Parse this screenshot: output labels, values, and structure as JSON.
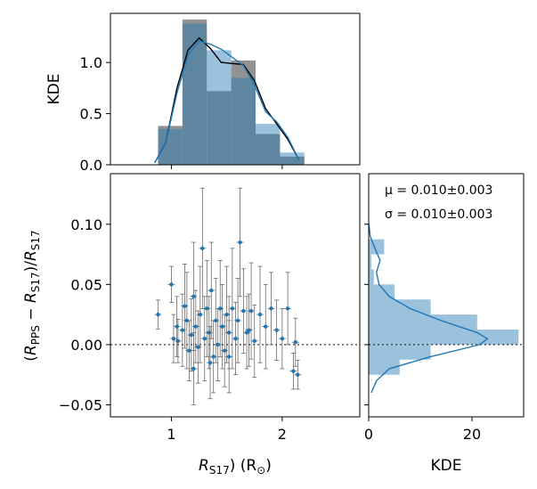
{
  "chart_data": [
    {
      "panel": "top-marginal",
      "type": "histogram+kde",
      "ylabel": "KDE",
      "xlim": [
        0.45,
        2.7
      ],
      "ylim": [
        0,
        1.48
      ],
      "yticks": [
        0.0,
        0.5,
        1.0
      ],
      "ytick_labels": [
        "0.0",
        "0.5",
        "1.0"
      ],
      "xticks": [
        1,
        2
      ],
      "bins": [
        0.88,
        1.1,
        1.32,
        1.54,
        1.76,
        1.98,
        2.2
      ],
      "series": [
        {
          "name": "R_PPS",
          "color": "#7f7f7f",
          "counts": [
            0.38,
            1.42,
            0.72,
            1.02,
            0.3,
            0.08
          ],
          "kde_x": [
            0.85,
            0.95,
            1.05,
            1.15,
            1.25,
            1.35,
            1.45,
            1.55,
            1.65,
            1.75,
            1.85,
            1.95,
            2.05,
            2.15
          ],
          "kde_y": [
            0.02,
            0.22,
            0.75,
            1.12,
            1.24,
            1.14,
            1.0,
            0.99,
            0.98,
            0.82,
            0.55,
            0.4,
            0.25,
            0.05
          ]
        },
        {
          "name": "R_S17",
          "color": "#1f77b4",
          "counts": [
            0.35,
            1.38,
            1.12,
            0.85,
            0.4,
            0.12
          ],
          "kde_x": [
            0.85,
            0.95,
            1.05,
            1.15,
            1.25,
            1.35,
            1.45,
            1.55,
            1.65,
            1.75,
            1.85,
            1.95,
            2.05,
            2.15
          ],
          "kde_y": [
            0.02,
            0.22,
            0.7,
            1.07,
            1.21,
            1.18,
            1.13,
            1.05,
            0.97,
            0.78,
            0.52,
            0.42,
            0.27,
            0.05
          ]
        }
      ]
    },
    {
      "panel": "main-scatter",
      "type": "scatter",
      "xlabel": "R_S17) (R_sun)",
      "ylabel": "(R_PPS - R_S17)/R_S17",
      "xlim": [
        0.45,
        2.7
      ],
      "ylim": [
        -0.06,
        0.142
      ],
      "xticks": [
        1,
        2
      ],
      "xtick_labels": [
        "1",
        "2"
      ],
      "yticks": [
        -0.05,
        0.0,
        0.05,
        0.1
      ],
      "ytick_labels": [
        "−0.05",
        "0.00",
        "0.05",
        "0.10"
      ],
      "reference_line_y": 0.0,
      "points": [
        {
          "x": 0.88,
          "y": 0.025,
          "err": 0.012
        },
        {
          "x": 1.0,
          "y": 0.05,
          "err": 0.015
        },
        {
          "x": 1.02,
          "y": 0.005,
          "err": 0.02
        },
        {
          "x": 1.06,
          "y": 0.003,
          "err": 0.018
        },
        {
          "x": 1.1,
          "y": 0.012,
          "err": 0.03
        },
        {
          "x": 1.12,
          "y": 0.032,
          "err": 0.035
        },
        {
          "x": 1.14,
          "y": 0.02,
          "err": 0.04
        },
        {
          "x": 1.16,
          "y": -0.005,
          "err": 0.025
        },
        {
          "x": 1.18,
          "y": 0.008,
          "err": 0.03
        },
        {
          "x": 1.2,
          "y": 0.04,
          "err": 0.045
        },
        {
          "x": 1.22,
          "y": 0.015,
          "err": 0.03
        },
        {
          "x": 1.24,
          "y": -0.002,
          "err": 0.03
        },
        {
          "x": 1.26,
          "y": 0.025,
          "err": 0.04
        },
        {
          "x": 1.28,
          "y": 0.08,
          "err": 0.05
        },
        {
          "x": 1.3,
          "y": 0.005,
          "err": 0.035
        },
        {
          "x": 1.32,
          "y": 0.03,
          "err": 0.04
        },
        {
          "x": 1.34,
          "y": 0.01,
          "err": 0.03
        },
        {
          "x": 1.36,
          "y": 0.045,
          "err": 0.04
        },
        {
          "x": 1.38,
          "y": -0.01,
          "err": 0.03
        },
        {
          "x": 1.4,
          "y": 0.02,
          "err": 0.035
        },
        {
          "x": 1.42,
          "y": 0.0,
          "err": 0.03
        },
        {
          "x": 1.44,
          "y": 0.03,
          "err": 0.04
        },
        {
          "x": 1.46,
          "y": 0.015,
          "err": 0.035
        },
        {
          "x": 1.48,
          "y": -0.005,
          "err": 0.03
        },
        {
          "x": 1.5,
          "y": 0.025,
          "err": 0.04
        },
        {
          "x": 1.52,
          "y": 0.01,
          "err": 0.03
        },
        {
          "x": 1.55,
          "y": 0.03,
          "err": 0.05
        },
        {
          "x": 1.58,
          "y": 0.005,
          "err": 0.03
        },
        {
          "x": 1.6,
          "y": 0.02,
          "err": 0.035
        },
        {
          "x": 1.62,
          "y": 0.085,
          "err": 0.045
        },
        {
          "x": 1.65,
          "y": 0.028,
          "err": 0.035
        },
        {
          "x": 1.68,
          "y": 0.01,
          "err": 0.03
        },
        {
          "x": 1.72,
          "y": 0.028,
          "err": 0.04
        },
        {
          "x": 1.75,
          "y": 0.003,
          "err": 0.03
        },
        {
          "x": 1.8,
          "y": 0.025,
          "err": 0.04
        },
        {
          "x": 1.85,
          "y": 0.015,
          "err": 0.035
        },
        {
          "x": 1.9,
          "y": 0.03,
          "err": 0.03
        },
        {
          "x": 1.95,
          "y": 0.012,
          "err": 0.025
        },
        {
          "x": 2.0,
          "y": 0.005,
          "err": 0.025
        },
        {
          "x": 2.05,
          "y": 0.03,
          "err": 0.03
        },
        {
          "x": 2.1,
          "y": -0.022,
          "err": 0.015
        },
        {
          "x": 2.12,
          "y": 0.002,
          "err": 0.02
        },
        {
          "x": 2.14,
          "y": -0.025,
          "err": 0.012
        },
        {
          "x": 1.2,
          "y": -0.02,
          "err": 0.03
        },
        {
          "x": 1.35,
          "y": -0.015,
          "err": 0.03
        },
        {
          "x": 1.52,
          "y": -0.01,
          "err": 0.03
        },
        {
          "x": 1.05,
          "y": 0.015,
          "err": 0.025
        },
        {
          "x": 1.7,
          "y": 0.012,
          "err": 0.03
        }
      ]
    },
    {
      "panel": "right-marginal",
      "type": "histogram+kde",
      "orientation": "horizontal",
      "xlabel": "KDE",
      "xlim": [
        0,
        30
      ],
      "xticks": [
        0,
        20
      ],
      "xtick_labels": [
        "0",
        "20"
      ],
      "bins": [
        -0.025,
        -0.0125,
        0.0,
        0.0125,
        0.025,
        0.0375,
        0.05,
        0.0625,
        0.075,
        0.0875
      ],
      "counts": [
        6,
        12,
        29,
        21,
        12,
        5,
        1,
        0.5,
        3
      ],
      "kde_y": [
        -0.04,
        -0.03,
        -0.02,
        -0.01,
        0.0,
        0.005,
        0.01,
        0.02,
        0.03,
        0.04,
        0.05,
        0.06,
        0.07,
        0.08,
        0.09,
        0.1
      ],
      "kde_x": [
        0.5,
        1.5,
        4,
        12,
        21.5,
        23,
        21,
        14,
        8,
        4,
        2,
        1.5,
        2.2,
        1.2,
        0.3,
        0.05
      ],
      "annotations": {
        "mu": "μ = 0.010±0.003",
        "sigma": "σ = 0.010±0.003"
      }
    }
  ],
  "colors": {
    "blue": "#1f77b4",
    "gray": "#7f7f7f",
    "line_black": "#000000"
  }
}
